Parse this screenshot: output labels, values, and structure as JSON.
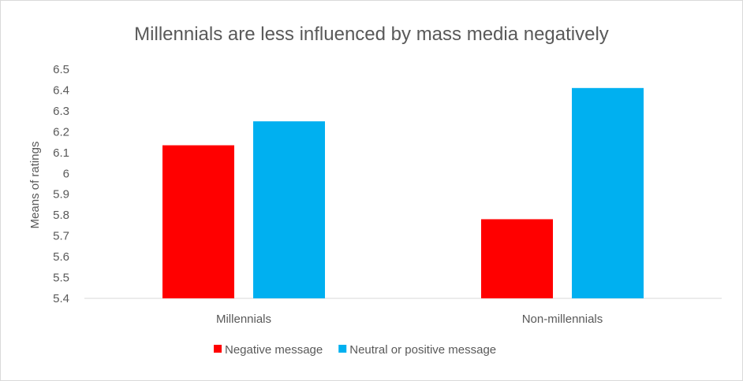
{
  "chart_data": {
    "type": "bar",
    "title": "Millennials are less influenced by mass media negatively",
    "xlabel": "",
    "ylabel": "Means of ratings",
    "ylim": [
      5.4,
      6.5
    ],
    "yticks": [
      "5.4",
      "5.5",
      "5.6",
      "5.7",
      "5.8",
      "5.9",
      "6",
      "6.1",
      "6.2",
      "6.3",
      "6.4",
      "6.5"
    ],
    "grid": false,
    "legend_position": "bottom",
    "categories": [
      "Millennials",
      "Non-millennials"
    ],
    "series": [
      {
        "name": "Negative message",
        "color": "#ff0000",
        "values": [
          6.135,
          5.78
        ]
      },
      {
        "name": "Neutral or positive message",
        "color": "#00b0f0",
        "values": [
          6.25,
          6.41
        ]
      }
    ]
  }
}
